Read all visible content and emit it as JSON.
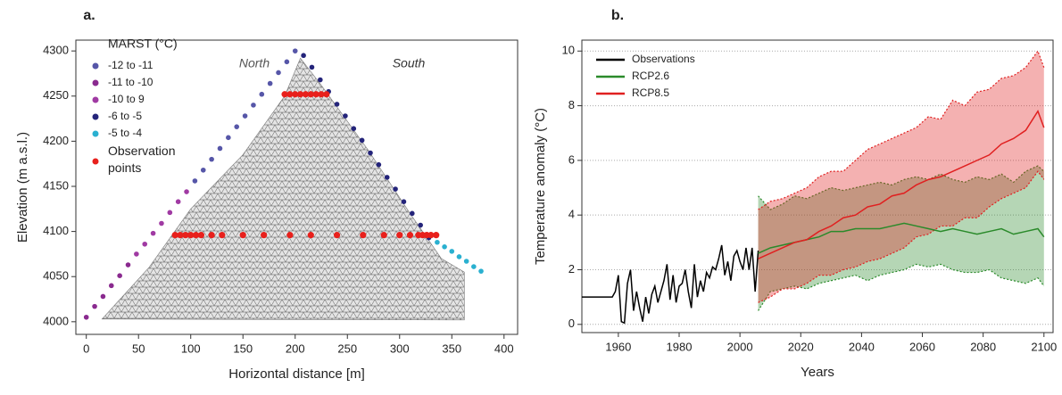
{
  "chart_data": [
    {
      "type": "scatter",
      "panel": "a.",
      "xlabel": "Horizontal distance [m]",
      "ylabel": "Elevation (m a.s.l.)",
      "legend_title": "MARST (°C)",
      "annotations": [
        "North",
        "South"
      ],
      "xlim": [
        -10,
        413
      ],
      "ylim": [
        3986,
        4312
      ],
      "xticks": [
        0,
        50,
        100,
        150,
        200,
        250,
        300,
        350,
        400
      ],
      "yticks": [
        4000,
        4050,
        4100,
        4150,
        4200,
        4250,
        4300
      ],
      "series": [
        {
          "name": "-12 to -11",
          "color": "#5656a8",
          "x": [
            104,
            112,
            120,
            128,
            136,
            144,
            152,
            160,
            168,
            176,
            184,
            192,
            200
          ],
          "values": [
            4156,
            4168,
            4180,
            4192,
            4204,
            4216,
            4228,
            4240,
            4252,
            4264,
            4276,
            4288,
            4300
          ]
        },
        {
          "name": "-11 to -10",
          "color": "#8a2a8f",
          "x": [
            0,
            8,
            16,
            24,
            32,
            40
          ],
          "values": [
            4005,
            4017,
            4028,
            4040,
            4051,
            4063
          ]
        },
        {
          "name": "-10 to 9",
          "color": "#a03aa3",
          "x": [
            48,
            56,
            64,
            72,
            80,
            88,
            96
          ],
          "values": [
            4075,
            4086,
            4098,
            4109,
            4121,
            4133,
            4144
          ]
        },
        {
          "name": "-6 to -5",
          "color": "#24247a",
          "x": [
            208,
            216,
            224,
            232,
            240,
            248,
            256,
            264,
            272,
            280,
            288,
            296,
            304,
            312,
            320,
            328
          ],
          "values": [
            4295,
            4282,
            4268,
            4255,
            4241,
            4228,
            4214,
            4201,
            4187,
            4174,
            4160,
            4147,
            4133,
            4120,
            4107,
            4093
          ]
        },
        {
          "name": "-5 to -4",
          "color": "#2ab0d0",
          "x": [
            336,
            343,
            350,
            357,
            364,
            371,
            378
          ],
          "values": [
            4088,
            4083,
            4078,
            4072,
            4067,
            4061,
            4056
          ]
        },
        {
          "name": "Observation points",
          "color": "#e8201c",
          "x": [
            190,
            195,
            200,
            205,
            210,
            215,
            220,
            225,
            230,
            85,
            90,
            95,
            100,
            105,
            110,
            120,
            130,
            150,
            170,
            195,
            215,
            240,
            265,
            285,
            300,
            310,
            318,
            322,
            326,
            330,
            335
          ],
          "values": [
            4252,
            4252,
            4252,
            4252,
            4252,
            4252,
            4252,
            4252,
            4252,
            4096,
            4096,
            4096,
            4096,
            4096,
            4096,
            4096,
            4096,
            4096,
            4096,
            4096,
            4096,
            4096,
            4096,
            4096,
            4096,
            4096,
            4096,
            4096,
            4096,
            4096,
            4096
          ]
        }
      ]
    },
    {
      "type": "line",
      "panel": "b.",
      "xlabel": "Years",
      "ylabel": "Temperature anomaly (°C)",
      "grid": true,
      "xlim": [
        1948,
        2103
      ],
      "ylim": [
        -0.3,
        10.4
      ],
      "xticks": [
        1960,
        1980,
        2000,
        2020,
        2040,
        2060,
        2080,
        2100
      ],
      "yticks": [
        0,
        2,
        4,
        6,
        8,
        10
      ],
      "series": [
        {
          "name": "Observations",
          "color": "#000000",
          "x": [
            1948,
            1950,
            1955,
            1958,
            1959,
            1960,
            1961,
            1962,
            1963,
            1964,
            1965,
            1966,
            1967,
            1968,
            1969,
            1970,
            1971,
            1972,
            1973,
            1974,
            1975,
            1976,
            1977,
            1978,
            1979,
            1980,
            1981,
            1982,
            1983,
            1984,
            1985,
            1986,
            1987,
            1988,
            1989,
            1990,
            1991,
            1992,
            1993,
            1994,
            1995,
            1996,
            1997,
            1998,
            1999,
            2000,
            2001,
            2002,
            2003,
            2004,
            2005,
            2006
          ],
          "values": [
            1.0,
            1.0,
            1.0,
            1.0,
            1.2,
            1.8,
            0.1,
            0.05,
            1.5,
            2.0,
            0.5,
            1.2,
            0.6,
            0.1,
            1.0,
            0.4,
            1.1,
            1.4,
            0.8,
            1.2,
            1.6,
            2.2,
            0.9,
            1.8,
            0.8,
            1.4,
            1.5,
            2.0,
            1.2,
            0.6,
            2.2,
            1.0,
            1.6,
            1.2,
            1.9,
            1.7,
            2.1,
            2.0,
            2.4,
            2.9,
            1.8,
            2.3,
            1.6,
            2.5,
            2.7,
            2.3,
            2.0,
            2.8,
            2.0,
            2.8,
            1.2,
            2.7
          ]
        },
        {
          "name": "RCP2.6",
          "color": "#2a8a2a",
          "x": [
            2006,
            2010,
            2014,
            2018,
            2022,
            2026,
            2030,
            2034,
            2038,
            2042,
            2046,
            2050,
            2054,
            2058,
            2062,
            2066,
            2070,
            2074,
            2078,
            2082,
            2086,
            2090,
            2094,
            2098,
            2100
          ],
          "values": [
            2.6,
            2.8,
            2.9,
            3.0,
            3.1,
            3.2,
            3.4,
            3.4,
            3.5,
            3.5,
            3.5,
            3.6,
            3.7,
            3.6,
            3.5,
            3.4,
            3.5,
            3.4,
            3.3,
            3.4,
            3.5,
            3.3,
            3.4,
            3.5,
            3.2
          ],
          "lower": [
            0.5,
            1.2,
            1.3,
            1.4,
            1.3,
            1.5,
            1.6,
            1.7,
            1.8,
            1.6,
            1.8,
            1.9,
            2.0,
            2.2,
            2.1,
            2.2,
            2.0,
            1.9,
            1.9,
            2.0,
            1.7,
            1.6,
            1.5,
            1.7,
            1.4
          ],
          "upper": [
            4.7,
            4.2,
            4.4,
            4.7,
            4.6,
            4.8,
            5.0,
            4.9,
            5.0,
            5.1,
            5.2,
            5.1,
            5.3,
            5.4,
            5.3,
            5.5,
            5.3,
            5.2,
            5.4,
            5.3,
            5.5,
            5.2,
            5.6,
            5.8,
            5.6
          ]
        },
        {
          "name": "RCP8.5",
          "color": "#e02020",
          "x": [
            2006,
            2010,
            2014,
            2018,
            2022,
            2026,
            2030,
            2034,
            2038,
            2042,
            2046,
            2050,
            2054,
            2058,
            2062,
            2066,
            2070,
            2074,
            2078,
            2082,
            2086,
            2090,
            2094,
            2098,
            2100
          ],
          "values": [
            2.4,
            2.6,
            2.8,
            3.0,
            3.1,
            3.4,
            3.6,
            3.9,
            4.0,
            4.3,
            4.4,
            4.7,
            4.8,
            5.1,
            5.3,
            5.4,
            5.6,
            5.8,
            6.0,
            6.2,
            6.6,
            6.8,
            7.1,
            7.8,
            7.2
          ],
          "lower": [
            0.8,
            1.0,
            1.3,
            1.3,
            1.5,
            1.8,
            1.8,
            2.0,
            2.1,
            2.3,
            2.4,
            2.6,
            2.8,
            3.2,
            3.3,
            3.6,
            3.6,
            3.9,
            3.9,
            4.3,
            4.6,
            4.8,
            5.0,
            5.6,
            5.3
          ],
          "upper": [
            4.2,
            4.5,
            4.6,
            4.8,
            5.0,
            5.4,
            5.6,
            5.6,
            6.0,
            6.4,
            6.6,
            6.8,
            7.0,
            7.2,
            7.6,
            7.5,
            8.2,
            8.0,
            8.5,
            8.6,
            9.0,
            9.1,
            9.4,
            10.0,
            9.4
          ]
        }
      ]
    }
  ]
}
